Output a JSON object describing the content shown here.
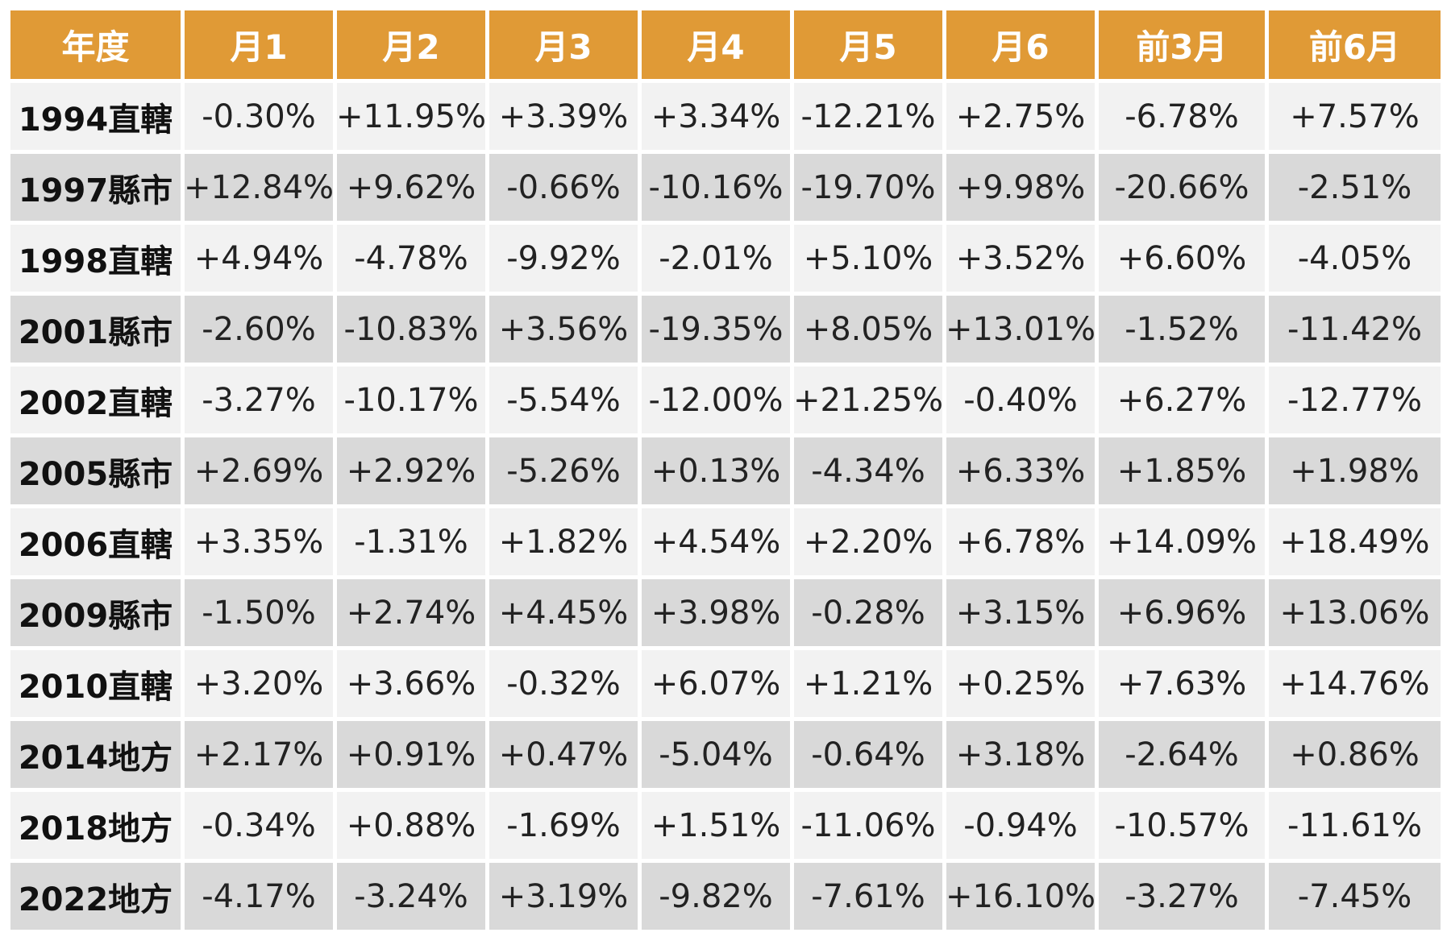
{
  "table": {
    "headers": [
      "年度",
      "月1",
      "月2",
      "月3",
      "月4",
      "月5",
      "月6",
      "前3月",
      "前6月"
    ],
    "rows": [
      {
        "year": "1994直轄",
        "values": [
          "-0.30%",
          "+11.95%",
          "+3.39%",
          "+3.34%",
          "-12.21%",
          "+2.75%",
          "-6.78%",
          "+7.57%"
        ]
      },
      {
        "year": "1997縣市",
        "values": [
          "+12.84%",
          "+9.62%",
          "-0.66%",
          "-10.16%",
          "-19.70%",
          "+9.98%",
          "-20.66%",
          "-2.51%"
        ]
      },
      {
        "year": "1998直轄",
        "values": [
          "+4.94%",
          "-4.78%",
          "-9.92%",
          "-2.01%",
          "+5.10%",
          "+3.52%",
          "+6.60%",
          "-4.05%"
        ]
      },
      {
        "year": "2001縣市",
        "values": [
          "-2.60%",
          "-10.83%",
          "+3.56%",
          "-19.35%",
          "+8.05%",
          "+13.01%",
          "-1.52%",
          "-11.42%"
        ]
      },
      {
        "year": "2002直轄",
        "values": [
          "-3.27%",
          "-10.17%",
          "-5.54%",
          "-12.00%",
          "+21.25%",
          "-0.40%",
          "+6.27%",
          "-12.77%"
        ]
      },
      {
        "year": "2005縣市",
        "values": [
          "+2.69%",
          "+2.92%",
          "-5.26%",
          "+0.13%",
          "-4.34%",
          "+6.33%",
          "+1.85%",
          "+1.98%"
        ]
      },
      {
        "year": "2006直轄",
        "values": [
          "+3.35%",
          "-1.31%",
          "+1.82%",
          "+4.54%",
          "+2.20%",
          "+6.78%",
          "+14.09%",
          "+18.49%"
        ]
      },
      {
        "year": "2009縣市",
        "values": [
          "-1.50%",
          "+2.74%",
          "+4.45%",
          "+3.98%",
          "-0.28%",
          "+3.15%",
          "+6.96%",
          "+13.06%"
        ]
      },
      {
        "year": "2010直轄",
        "values": [
          "+3.20%",
          "+3.66%",
          "-0.32%",
          "+6.07%",
          "+1.21%",
          "+0.25%",
          "+7.63%",
          "+14.76%"
        ]
      },
      {
        "year": "2014地方",
        "values": [
          "+2.17%",
          "+0.91%",
          "+0.47%",
          "-5.04%",
          "-0.64%",
          "+3.18%",
          "-2.64%",
          "+0.86%"
        ]
      },
      {
        "year": "2018地方",
        "values": [
          "-0.34%",
          "+0.88%",
          "-1.69%",
          "+1.51%",
          "-11.06%",
          "-0.94%",
          "-10.57%",
          "-11.61%"
        ]
      },
      {
        "year": "2022地方",
        "values": [
          "-4.17%",
          "-3.24%",
          "+3.19%",
          "-9.82%",
          "-7.61%",
          "+16.10%",
          "-3.27%",
          "-7.45%"
        ]
      }
    ]
  },
  "colors": {
    "header_bg": "#e09a36",
    "header_text": "#ffffff",
    "row_light": "#f2f2f2",
    "row_dark": "#d9d9d9"
  }
}
